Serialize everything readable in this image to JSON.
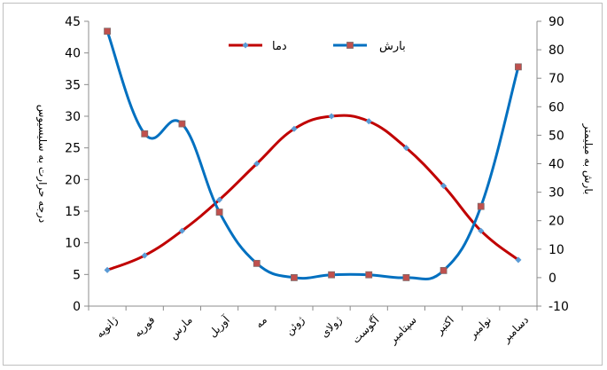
{
  "chart_data": {
    "type": "line",
    "categories": [
      "ژانویه",
      "فوریه",
      "مارس",
      "آوریل",
      "مه",
      "ژوئن",
      "ژولای",
      "آگوست",
      "سپتامبر",
      "اکتبر",
      "نوامبر",
      "دسامبر"
    ],
    "series": [
      {
        "name": "دما",
        "axis": "left",
        "color": "#c00000",
        "marker_color": "#5b9bd5",
        "values": [
          5.7,
          8.0,
          11.9,
          16.8,
          22.5,
          28.0,
          30.0,
          29.2,
          25.0,
          19.0,
          11.9,
          7.3
        ]
      },
      {
        "name": "بارش",
        "axis": "right",
        "color": "#0070c0",
        "marker_color": "#c0504d",
        "values": [
          86.5,
          50.5,
          54,
          23,
          5,
          0,
          1,
          1,
          0,
          2.5,
          25,
          74
        ]
      }
    ],
    "ylabel": "درجه حرارت به سلیسیوس",
    "y2label": "بارش به میلیمتر",
    "ylim": [
      0,
      45
    ],
    "y2lim": [
      -10,
      90
    ],
    "yticks": [
      "0",
      "5",
      "10",
      "15",
      "20",
      "25",
      "30",
      "35",
      "40",
      "45"
    ],
    "y2ticks": [
      "-10",
      "0",
      "10",
      "20",
      "30",
      "40",
      "50",
      "60",
      "70",
      "80",
      "90"
    ],
    "legend": {
      "position": "top-center",
      "entries": [
        "دما",
        "بارش"
      ]
    },
    "grid": false
  }
}
